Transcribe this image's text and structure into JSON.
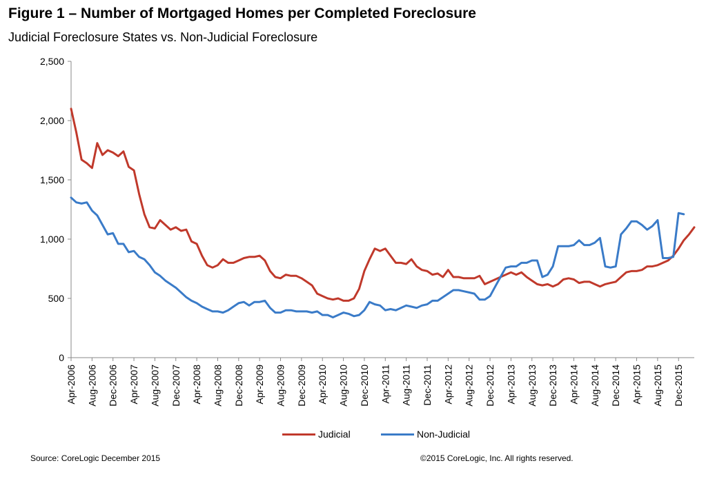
{
  "header": {
    "title": "Figure 1 – Number of Mortgaged Homes per Completed Foreclosure",
    "subtitle": "Judicial Foreclosure States vs. Non-Judicial Foreclosure"
  },
  "footer": {
    "source": "Source: CoreLogic  December 2015",
    "copyright": "©2015 CoreLogic, Inc. All rights reserved."
  },
  "legend": [
    {
      "label": "Judicial",
      "color": "#c0392b"
    },
    {
      "label": "Non-Judicial",
      "color": "#3a7bc8"
    }
  ],
  "chart_data": {
    "type": "line",
    "title": "Figure 1 – Number of Mortgaged Homes per Completed Foreclosure",
    "subtitle": "Judicial Foreclosure States vs. Non-Judicial Foreclosure",
    "xlabel": "",
    "ylabel": "",
    "ylim": [
      0,
      2500
    ],
    "yticks": [
      0,
      500,
      1000,
      1500,
      2000,
      2500
    ],
    "ytick_labels": [
      "0",
      "500",
      "1,000",
      "1,500",
      "2,000",
      "2,500"
    ],
    "x_start": "Apr-2006",
    "x_end": "Dec-2015",
    "xtick_labels": [
      "Apr-2006",
      "Aug-2006",
      "Dec-2006",
      "Apr-2007",
      "Aug-2007",
      "Dec-2007",
      "Apr-2008",
      "Aug-2008",
      "Dec-2008",
      "Apr-2009",
      "Aug-2009",
      "Dec-2009",
      "Apr-2010",
      "Aug-2010",
      "Dec-2010",
      "Apr-2011",
      "Aug-2011",
      "Dec-2011",
      "Apr-2012",
      "Aug-2012",
      "Dec-2012",
      "Apr-2013",
      "Aug-2013",
      "Dec-2013",
      "Apr-2014",
      "Aug-2014",
      "Dec-2014",
      "Apr-2015",
      "Aug-2015",
      "Dec-2015"
    ],
    "grid": false,
    "legend_position": "bottom",
    "series": [
      {
        "name": "Judicial",
        "color": "#c0392b",
        "values": [
          2100,
          1900,
          1670,
          1640,
          1600,
          1810,
          1710,
          1750,
          1730,
          1700,
          1740,
          1610,
          1580,
          1380,
          1210,
          1100,
          1090,
          1160,
          1120,
          1080,
          1100,
          1070,
          1080,
          980,
          960,
          860,
          780,
          760,
          780,
          830,
          800,
          800,
          820,
          840,
          850,
          850,
          860,
          820,
          730,
          680,
          670,
          700,
          690,
          690,
          670,
          640,
          610,
          540,
          520,
          500,
          490,
          500,
          480,
          480,
          500,
          580,
          730,
          830,
          920,
          900,
          920,
          860,
          800,
          800,
          790,
          830,
          770,
          740,
          730,
          700,
          710,
          680,
          740,
          680,
          680,
          670,
          670,
          670,
          690,
          620,
          640,
          660,
          680,
          700,
          720,
          700,
          720,
          680,
          650,
          620,
          610,
          620,
          600,
          620,
          660,
          670,
          660,
          630,
          640,
          640,
          620,
          600,
          620,
          630,
          640,
          680,
          720,
          730,
          730,
          740,
          770,
          770,
          780,
          800,
          820,
          860,
          920,
          990,
          1040,
          1100
        ]
      },
      {
        "name": "Non-Judicial",
        "color": "#3a7bc8",
        "values": [
          1350,
          1310,
          1300,
          1310,
          1240,
          1200,
          1120,
          1040,
          1050,
          960,
          960,
          890,
          900,
          850,
          830,
          780,
          720,
          690,
          650,
          620,
          590,
          550,
          510,
          480,
          460,
          430,
          410,
          390,
          390,
          380,
          400,
          430,
          460,
          470,
          440,
          470,
          470,
          480,
          420,
          380,
          380,
          400,
          400,
          390,
          390,
          390,
          380,
          390,
          360,
          360,
          340,
          360,
          380,
          370,
          350,
          360,
          400,
          470,
          450,
          440,
          400,
          410,
          400,
          420,
          440,
          430,
          420,
          440,
          450,
          480,
          480,
          510,
          540,
          570,
          570,
          560,
          550,
          540,
          490,
          490,
          520,
          600,
          680,
          760,
          770,
          770,
          800,
          800,
          820,
          820,
          680,
          700,
          770,
          940,
          940,
          940,
          950,
          990,
          950,
          950,
          970,
          1010,
          770,
          760,
          770,
          1040,
          1090,
          1150,
          1150,
          1120,
          1080,
          1110,
          1160,
          840,
          840,
          850,
          1220,
          1210
        ]
      }
    ]
  }
}
